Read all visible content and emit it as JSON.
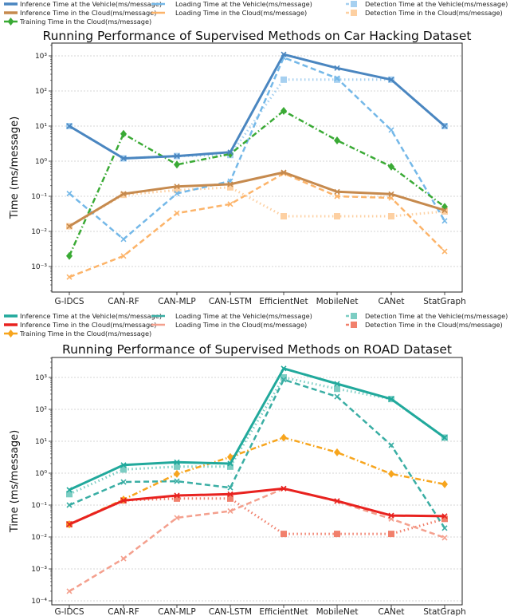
{
  "chart_data": [
    {
      "type": "line",
      "title": "Running Performance of Supervised Methods on Car Hacking Dataset",
      "xlabel": "",
      "ylabel": "Time (ms/message)",
      "yscale": "log",
      "ylim": [
        0.0003,
        2500
      ],
      "ytick_values": [
        0.001,
        0.01,
        0.1,
        1,
        10,
        100,
        1000
      ],
      "ytick_labels": [
        "10⁻³",
        "10⁻²",
        "10⁻¹",
        "10⁰",
        "10¹",
        "10²",
        "10³"
      ],
      "grid": true,
      "legend_position": "top",
      "categories": [
        "G-IDCS",
        "CAN-RF",
        "CAN-MLP",
        "CAN-LSTM",
        "EfficientNet",
        "MobileNet",
        "CANet",
        "StatGraph"
      ],
      "series": [
        {
          "name": "Inference Time at the Vehicle(ms/message)",
          "color": "#4a86c0",
          "style": "solid",
          "marker": "x",
          "values": [
            10,
            1.2,
            1.4,
            1.8,
            1100,
            450,
            210,
            10
          ]
        },
        {
          "name": "Inference Time in the Cloud(ms/message)",
          "color": "#c68a4e",
          "style": "solid",
          "marker": "x",
          "values": [
            0.014,
            0.117,
            0.19,
            0.22,
            0.48,
            0.135,
            0.115,
            0.04
          ]
        },
        {
          "name": "Training Time in the Cloud(ms/message)",
          "color": "#3aaa35",
          "style": "dashdot",
          "marker": "diamond",
          "values": [
            0.002,
            6,
            0.8,
            1.6,
            27,
            3.9,
            0.7,
            0.05
          ]
        },
        {
          "name": "Loading Time at the Vehicle(ms/message)",
          "color": "#74b8e8",
          "style": "dashed",
          "marker": "x",
          "values": [
            0.12,
            0.006,
            0.12,
            0.27,
            900,
            230,
            7.7,
            0.02
          ]
        },
        {
          "name": "Loading Time in the Cloud(ms/message)",
          "color": "#fcb46a",
          "style": "dashed",
          "marker": "x",
          "values": [
            0.0005,
            0.002,
            0.033,
            0.06,
            0.45,
            0.1,
            0.09,
            0.0027
          ]
        },
        {
          "name": "Detection Time at the Vehicle(ms/message)",
          "color": "#a6d0f0",
          "style": "dotted",
          "marker": "square",
          "values": [
            10,
            1.2,
            1.4,
            1.5,
            210,
            210,
            210,
            10
          ]
        },
        {
          "name": "Detection Time in the Cloud(ms/message)",
          "color": "#fdd0a2",
          "style": "dotted",
          "marker": "square",
          "values": [
            0.014,
            0.11,
            0.15,
            0.18,
            0.027,
            0.027,
            0.027,
            0.037
          ]
        }
      ]
    },
    {
      "type": "line",
      "title": "Running Performance of Supervised Methods on ROAD Dataset",
      "xlabel": "",
      "ylabel": "Time (ms/message)",
      "yscale": "log",
      "ylim": [
        0.0001,
        5000
      ],
      "ytick_values": [
        0.0001,
        0.001,
        0.01,
        0.1,
        1,
        10,
        100,
        1000
      ],
      "ytick_labels": [
        "10⁻⁴",
        "10⁻³",
        "10⁻²",
        "10⁻¹",
        "10⁰",
        "10¹",
        "10²",
        "10³"
      ],
      "grid": true,
      "legend_position": "top",
      "categories": [
        "G-IDCS",
        "CAN-RF",
        "CAN-MLP",
        "CAN-LSTM",
        "EfficientNet",
        "MobileNet",
        "CANet",
        "StatGraph"
      ],
      "series": [
        {
          "name": "Inference Time at the Vehicle(ms/message)",
          "color": "#21a99c",
          "style": "solid",
          "marker": "x",
          "values": [
            0.3,
            1.8,
            2.2,
            2.0,
            1900,
            630,
            210,
            13
          ]
        },
        {
          "name": "Inference Time in the Cloud(ms/message)",
          "color": "#e8221f",
          "style": "solid",
          "marker": "x",
          "values": [
            0.025,
            0.14,
            0.2,
            0.22,
            0.33,
            0.135,
            0.047,
            0.045
          ]
        },
        {
          "name": "Training Time in the Cloud(ms/message)",
          "color": "#f7a51d",
          "style": "dashdot",
          "marker": "diamond",
          "values": [
            0.025,
            0.15,
            0.95,
            3.2,
            13,
            4.5,
            0.95,
            0.45
          ]
        },
        {
          "name": "Loading Time at the Vehicle(ms/message)",
          "color": "#3aaea4",
          "style": "dashed",
          "marker": "x",
          "values": [
            0.1,
            0.53,
            0.56,
            0.35,
            850,
            250,
            7.5,
            0.019
          ]
        },
        {
          "name": "Loading Time in the Cloud(ms/message)",
          "color": "#f4a08e",
          "style": "dashed",
          "marker": "x",
          "values": [
            0.0002,
            0.0021,
            0.04,
            0.065,
            0.33,
            0.13,
            0.037,
            0.0095
          ]
        },
        {
          "name": "Detection Time at the Vehicle(ms/message)",
          "color": "#7ccdc3",
          "style": "dotted",
          "marker": "square",
          "values": [
            0.22,
            1.3,
            1.6,
            1.6,
            1000,
            440,
            210,
            13
          ]
        },
        {
          "name": "Detection Time in the Cloud(ms/message)",
          "color": "#f1806c",
          "style": "dotted",
          "marker": "square",
          "values": [
            0.025,
            0.14,
            0.16,
            0.16,
            0.0125,
            0.0125,
            0.0125,
            0.037
          ]
        }
      ]
    }
  ]
}
